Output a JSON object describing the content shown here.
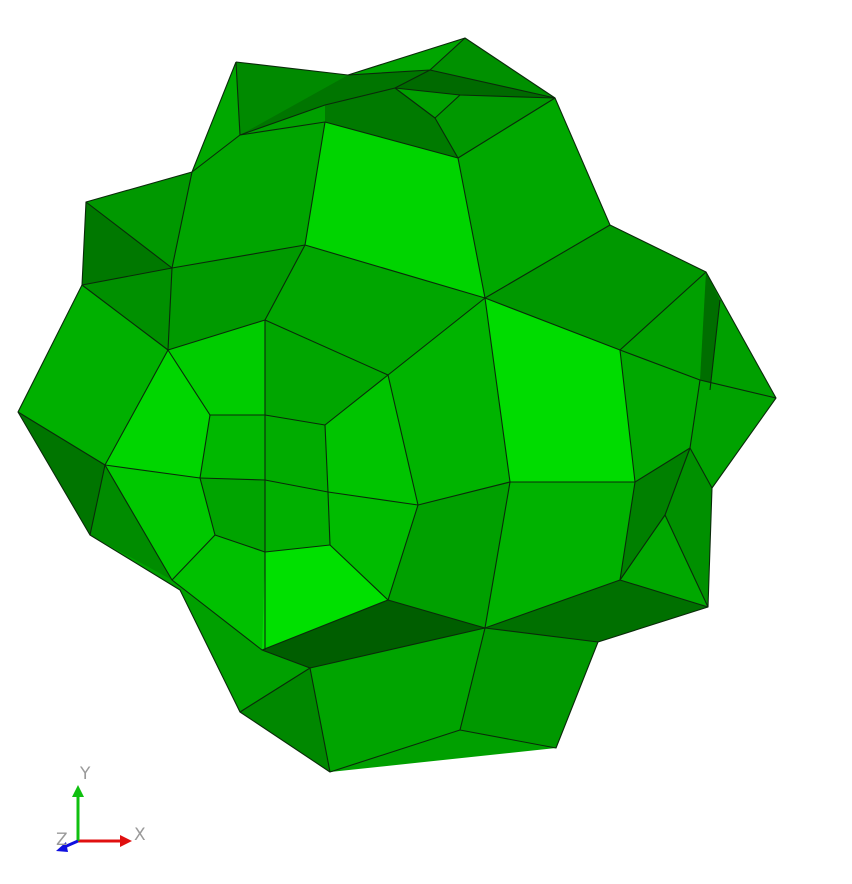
{
  "viewer": {
    "background": "#ffffff",
    "model_color": "#00b800",
    "edge_color": "#0a2a0a"
  },
  "axis_triad": {
    "x_label": "X",
    "y_label": "Y",
    "z_label": "Z",
    "x_color": "#e01010",
    "y_color": "#10c010",
    "z_color": "#1010e0"
  }
}
